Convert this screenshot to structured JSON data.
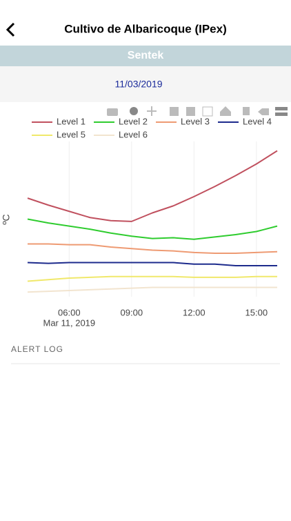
{
  "header": {
    "title": "Cultivo de Albaricoque (IPex)"
  },
  "section": "Sentek",
  "date": "11/03/2019",
  "chart_data": {
    "type": "line",
    "y_label": "ºC",
    "annotation": "Mar 11, 2019",
    "x": [
      4,
      5,
      6,
      7,
      8,
      9,
      10,
      11,
      12,
      13,
      14,
      15,
      16
    ],
    "xlim": [
      4,
      16
    ],
    "xticks": [
      {
        "value": 6,
        "label": "06:00"
      },
      {
        "value": 9,
        "label": "09:00"
      },
      {
        "value": 12,
        "label": "12:00"
      },
      {
        "value": 15,
        "label": "15:00"
      }
    ],
    "ylim": [
      10,
      30
    ],
    "grid": true,
    "series": [
      {
        "name": "Level 1",
        "color": "#c0505e",
        "values": [
          22.7,
          21.8,
          21.0,
          20.2,
          19.8,
          19.7,
          20.8,
          21.7,
          22.9,
          24.2,
          25.6,
          27.1,
          28.8
        ]
      },
      {
        "name": "Level 2",
        "color": "#2ecc2e",
        "values": [
          20.0,
          19.5,
          19.1,
          18.7,
          18.2,
          17.8,
          17.5,
          17.6,
          17.4,
          17.7,
          18.0,
          18.4,
          19.1
        ]
      },
      {
        "name": "Level 3",
        "color": "#ee9a72",
        "values": [
          16.8,
          16.8,
          16.7,
          16.7,
          16.4,
          16.2,
          16.0,
          15.9,
          15.7,
          15.6,
          15.6,
          15.7,
          15.8
        ]
      },
      {
        "name": "Level 4",
        "color": "#1c2a8c",
        "values": [
          14.4,
          14.3,
          14.4,
          14.4,
          14.4,
          14.4,
          14.4,
          14.4,
          14.2,
          14.2,
          14.0,
          14.0,
          14.0
        ]
      },
      {
        "name": "Level 5",
        "color": "#f0e86a",
        "values": [
          12.0,
          12.2,
          12.4,
          12.5,
          12.6,
          12.6,
          12.6,
          12.6,
          12.5,
          12.5,
          12.5,
          12.6,
          12.6
        ]
      },
      {
        "name": "Level 6",
        "color": "#f2e4cf",
        "values": [
          10.6,
          10.7,
          10.8,
          10.9,
          11.0,
          11.1,
          11.2,
          11.2,
          11.2,
          11.2,
          11.2,
          11.2,
          11.2
        ]
      }
    ]
  },
  "alert_log": "ALERT LOG"
}
